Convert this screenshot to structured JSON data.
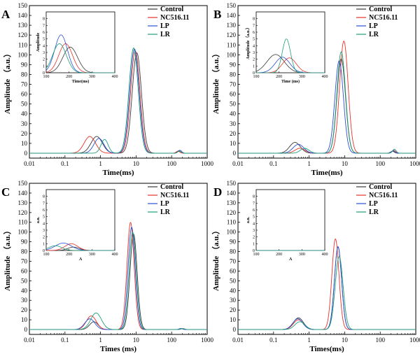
{
  "colors": {
    "Control": "#3a3a3a",
    "NC516.11": "#e8332a",
    "LP": "#2a4fd4",
    "LR": "#1f9e7a"
  },
  "chart_data": [
    {
      "panel": "A",
      "type": "line",
      "xscale": "log",
      "xlim": [
        0.01,
        1000
      ],
      "ylim": [
        -5,
        150
      ],
      "x_ticks": [
        "0.01",
        "0.1",
        "1",
        "10",
        "100",
        "1000"
      ],
      "y_ticks": [
        0,
        10,
        20,
        30,
        40,
        50,
        60,
        70,
        80,
        90,
        100,
        110,
        120,
        130,
        140,
        150
      ],
      "xlabel": "Time(ms)",
      "ylabel": "Amplitude （a.u.）",
      "legend": [
        "Control",
        "NC516.11",
        "LP",
        "LR"
      ],
      "legend_position": "top-right",
      "series": [
        {
          "name": "Control",
          "peaks": [
            [
              0.78,
              17,
              0.16
            ],
            [
              10.5,
              102,
              0.13
            ],
            [
              160,
              2.5,
              0.05
            ]
          ]
        },
        {
          "name": "NC516.11",
          "peaks": [
            [
              0.5,
              17,
              0.16
            ],
            [
              9.5,
              104,
              0.13
            ],
            [
              150,
              2,
              0.05
            ]
          ]
        },
        {
          "name": "LP",
          "peaks": [
            [
              0.9,
              15,
              0.14
            ],
            [
              9.0,
              106,
              0.13
            ],
            [
              170,
              3,
              0.05
            ]
          ]
        },
        {
          "name": "LR",
          "peaks": [
            [
              1.3,
              14,
              0.1
            ],
            [
              8.5,
              107,
              0.13
            ],
            [
              165,
              2,
              0.05
            ]
          ]
        }
      ],
      "inset": {
        "xlim": [
          100,
          400
        ],
        "ylim": [
          0,
          9
        ],
        "x_ticks": [
          "100",
          "200",
          "300",
          "400"
        ],
        "y_ticks": [
          "0",
          "1",
          "2",
          "3",
          "4",
          "5",
          "6",
          "7",
          "8"
        ],
        "xlabel": "Time(ms)",
        "ylabel": "Amplitude",
        "series": [
          {
            "name": "Control",
            "peaks": [
              [
                205,
                3.8,
                32
              ]
            ]
          },
          {
            "name": "NC516.11",
            "peaks": [
              [
                185,
                4.3,
                30
              ]
            ]
          },
          {
            "name": "LP",
            "peaks": [
              [
                165,
                5.6,
                28
              ]
            ]
          },
          {
            "name": "LR",
            "peaks": [
              [
                158,
                4.3,
                30
              ]
            ]
          }
        ]
      }
    },
    {
      "panel": "B",
      "type": "line",
      "xscale": "log",
      "xlim": [
        0.01,
        1000
      ],
      "ylim": [
        -5,
        150
      ],
      "x_ticks": [
        "0.01",
        "0.1",
        "1",
        "10",
        "100",
        "1000"
      ],
      "y_ticks": [
        0,
        10,
        20,
        30,
        40,
        50,
        60,
        70,
        80,
        90,
        100,
        110,
        120,
        130,
        140,
        150
      ],
      "xlabel": "Time(ms)",
      "ylabel": "Amplitude （a.u.）",
      "legend": [
        "Control",
        "NC516.11",
        "LP",
        "LR"
      ],
      "legend_position": "top-right",
      "series": [
        {
          "name": "Control",
          "peaks": [
            [
              0.4,
              11,
              0.15
            ],
            [
              8.0,
              96,
              0.12
            ],
            [
              220,
              2,
              0.05
            ]
          ]
        },
        {
          "name": "NC516.11",
          "peaks": [
            [
              0.55,
              5,
              0.14
            ],
            [
              9.5,
              114,
              0.12
            ],
            [
              240,
              3,
              0.05
            ]
          ]
        },
        {
          "name": "LP",
          "peaks": [
            [
              0.5,
              9,
              0.15
            ],
            [
              7.0,
              94,
              0.12
            ],
            [
              230,
              2.5,
              0.05
            ]
          ]
        },
        {
          "name": "LR",
          "peaks": [
            [
              0.75,
              5,
              0.12
            ],
            [
              8.0,
              103,
              0.12
            ],
            [
              250,
              4,
              0.05
            ]
          ]
        }
      ],
      "inset": {
        "xlim": [
          100,
          400
        ],
        "ylim": [
          0,
          9
        ],
        "x_ticks": [
          "100",
          "200",
          "300",
          "400"
        ],
        "y_ticks": [
          "0",
          "1",
          "2",
          "3",
          "4",
          "5",
          "6",
          "7",
          "8"
        ],
        "xlabel": "Time (ms)",
        "ylabel": "Amplitude（a.u.）",
        "series": [
          {
            "name": "Control",
            "peaks": [
              [
                185,
                2.7,
                38
              ]
            ]
          },
          {
            "name": "NC516.11",
            "peaks": [
              [
                245,
                2.2,
                30
              ]
            ]
          },
          {
            "name": "LP",
            "peaks": [
              [
                215,
                2.3,
                32
              ]
            ]
          },
          {
            "name": "LR",
            "peaks": [
              [
                232,
                5.0,
                18
              ]
            ]
          }
        ]
      }
    },
    {
      "panel": "C",
      "type": "line",
      "xscale": "log",
      "xlim": [
        0.01,
        1000
      ],
      "ylim": [
        -5,
        150
      ],
      "x_ticks": [
        "0.01",
        "0.1",
        "1",
        "10",
        "100",
        "1000"
      ],
      "y_ticks": [
        0,
        10,
        20,
        30,
        40,
        50,
        60,
        70,
        80,
        90,
        100,
        110,
        120,
        130,
        140,
        150
      ],
      "xlabel": "Times (ms)",
      "ylabel": "Amplitude （a.u.）",
      "legend": [
        "Control",
        "NC516.11",
        "LP",
        "LR"
      ],
      "legend_position": "top-right",
      "series": [
        {
          "name": "Control",
          "peaks": [
            [
              0.65,
              8,
              0.12
            ],
            [
              8.5,
              98,
              0.1
            ],
            [
              190,
              1,
              0.05
            ]
          ]
        },
        {
          "name": "NC516.11",
          "peaks": [
            [
              0.55,
              14,
              0.14
            ],
            [
              7.0,
              110,
              0.1
            ],
            [
              200,
              1,
              0.05
            ]
          ]
        },
        {
          "name": "LP",
          "peaks": [
            [
              0.5,
              11,
              0.14
            ],
            [
              7.5,
              105,
              0.1
            ],
            [
              180,
              1,
              0.05
            ]
          ]
        },
        {
          "name": "LR",
          "peaks": [
            [
              0.75,
              17,
              0.15
            ],
            [
              8.0,
              100,
              0.1
            ],
            [
              210,
              1,
              0.05
            ]
          ]
        }
      ],
      "inset": {
        "xlim": [
          100,
          400
        ],
        "ylim": [
          0,
          9
        ],
        "x_ticks": [
          "100",
          "200",
          "300",
          "400"
        ],
        "y_ticks": [
          "0",
          "1",
          "2",
          "3",
          "4",
          "5",
          "6",
          "7",
          "8"
        ],
        "xlabel": "A",
        "ylabel": "a.u.",
        "series": [
          {
            "name": "Control",
            "peaks": [
              [
                220,
                0.5,
                25
              ]
            ]
          },
          {
            "name": "NC516.11",
            "peaks": [
              [
                210,
                1.0,
                28
              ]
            ]
          },
          {
            "name": "LP",
            "peaks": [
              [
                175,
                1.1,
                35
              ]
            ]
          },
          {
            "name": "LR",
            "peaks": [
              [
                140,
                0.7,
                28
              ]
            ]
          }
        ]
      }
    },
    {
      "panel": "D",
      "type": "line",
      "xscale": "log",
      "xlim": [
        0.01,
        1000
      ],
      "ylim": [
        -5,
        150
      ],
      "x_ticks": [
        "0.01",
        "0.1",
        "1",
        "10",
        "100",
        "1000"
      ],
      "y_ticks": [
        0,
        10,
        20,
        30,
        40,
        50,
        60,
        70,
        80,
        90,
        100,
        110,
        120,
        130,
        140,
        150
      ],
      "xlabel": "Times(ms)",
      "ylabel": "Amplitude （a.u.）",
      "legend": [
        "Control",
        "NC516.11",
        "LP",
        "LR"
      ],
      "legend_position": "top-right",
      "series": [
        {
          "name": "Control",
          "peaks": [
            [
              0.5,
              12,
              0.14
            ],
            [
              6.5,
              85,
              0.1
            ]
          ]
        },
        {
          "name": "NC516.11",
          "peaks": [
            [
              0.5,
              10,
              0.14
            ],
            [
              5.5,
              93,
              0.1
            ]
          ]
        },
        {
          "name": "LP",
          "peaks": [
            [
              0.48,
              11,
              0.14
            ],
            [
              6.5,
              85,
              0.1
            ]
          ]
        },
        {
          "name": "LR",
          "peaks": [
            [
              0.55,
              8,
              0.14
            ],
            [
              7.0,
              75,
              0.11
            ]
          ]
        }
      ],
      "inset": {
        "xlim": [
          100,
          400
        ],
        "ylim": [
          0,
          9
        ],
        "x_ticks": [
          "100",
          "200",
          "300",
          "400"
        ],
        "y_ticks": [
          "0",
          "1",
          "2",
          "3",
          "4",
          "5",
          "6",
          "7",
          "8"
        ],
        "xlabel": "A",
        "ylabel": "a.u.",
        "series": [
          {
            "name": "Control",
            "peaks": []
          },
          {
            "name": "NC516.11",
            "peaks": []
          },
          {
            "name": "LP",
            "peaks": []
          },
          {
            "name": "LR",
            "peaks": []
          }
        ]
      }
    }
  ]
}
